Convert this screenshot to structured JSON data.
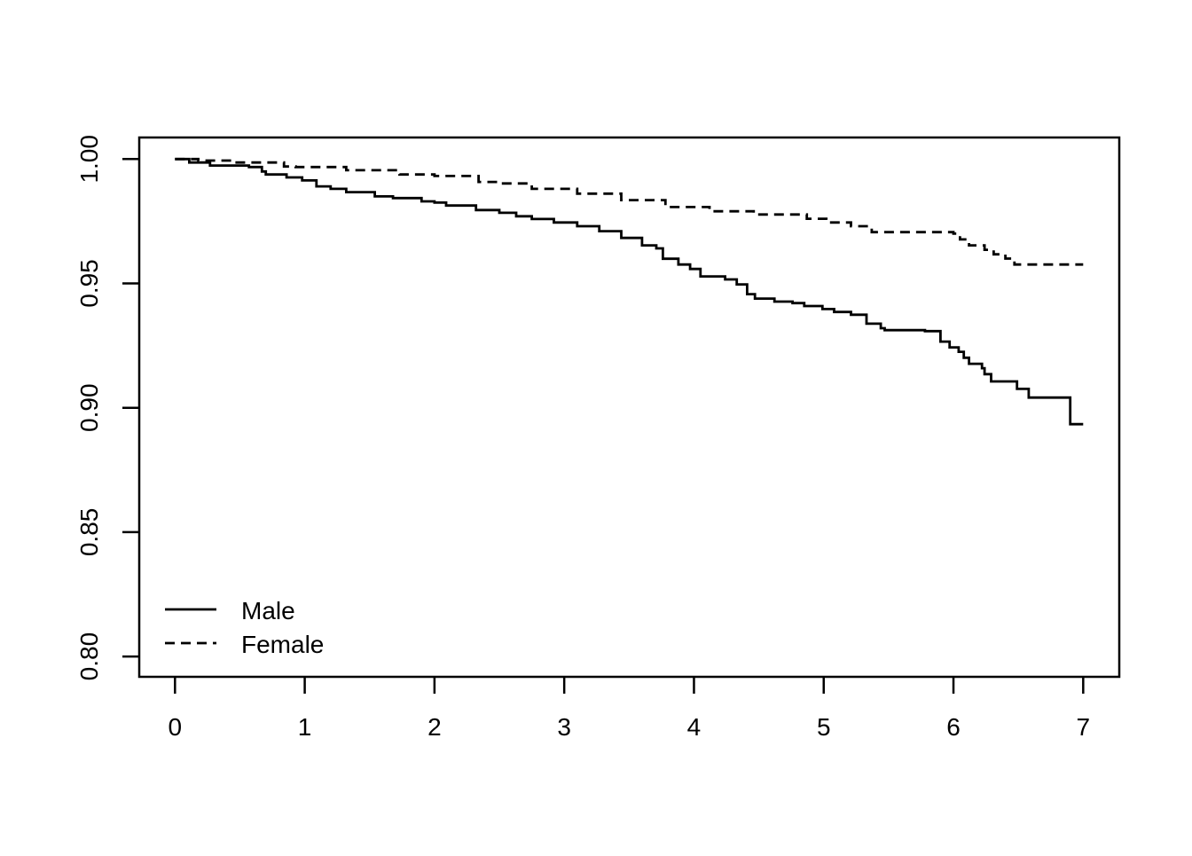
{
  "figure": {
    "background_color": "#FFFFFF",
    "foreground_color": "#000000"
  },
  "chart_data": {
    "type": "line",
    "subtype": "kaplan-meier-step-survival",
    "title": "",
    "xlabel": "",
    "ylabel": "",
    "xlim": [
      0,
      7
    ],
    "ylim": [
      0.8,
      1.0
    ],
    "grid": "off",
    "box": "full-border",
    "x_ticks": [
      {
        "value": 0,
        "label": "0"
      },
      {
        "value": 1,
        "label": "1"
      },
      {
        "value": 2,
        "label": "2"
      },
      {
        "value": 3,
        "label": "3"
      },
      {
        "value": 4,
        "label": "4"
      },
      {
        "value": 5,
        "label": "5"
      },
      {
        "value": 6,
        "label": "6"
      },
      {
        "value": 7,
        "label": "7"
      }
    ],
    "y_ticks": [
      {
        "value": 1.0,
        "label": "1.00"
      },
      {
        "value": 0.95,
        "label": "0.95"
      },
      {
        "value": 0.9,
        "label": "0.90"
      },
      {
        "value": 0.85,
        "label": "0.85"
      },
      {
        "value": 0.8,
        "label": "0.80"
      }
    ],
    "legend": {
      "position": "bottom-left-inside",
      "entries": [
        {
          "label": "Male",
          "line_style": "solid"
        },
        {
          "label": "Female",
          "line_style": "dashed"
        }
      ]
    },
    "series": [
      {
        "name": "Male",
        "line_style": "solid",
        "color": "#000000",
        "points": [
          [
            0.0,
            1.0
          ],
          [
            0.11,
            0.9986
          ],
          [
            0.27,
            0.9974
          ],
          [
            0.57,
            0.9968
          ],
          [
            0.67,
            0.995
          ],
          [
            0.7,
            0.9938
          ],
          [
            0.86,
            0.9926
          ],
          [
            0.98,
            0.9914
          ],
          [
            1.09,
            0.989
          ],
          [
            1.2,
            0.988
          ],
          [
            1.32,
            0.9867
          ],
          [
            1.54,
            0.985
          ],
          [
            1.68,
            0.9843
          ],
          [
            1.9,
            0.983
          ],
          [
            2.0,
            0.9825
          ],
          [
            2.09,
            0.9813
          ],
          [
            2.32,
            0.9795
          ],
          [
            2.5,
            0.9784
          ],
          [
            2.63,
            0.977
          ],
          [
            2.75,
            0.9759
          ],
          [
            2.92,
            0.9745
          ],
          [
            3.1,
            0.973
          ],
          [
            3.27,
            0.971
          ],
          [
            3.44,
            0.9683
          ],
          [
            3.6,
            0.9653
          ],
          [
            3.71,
            0.9641
          ],
          [
            3.76,
            0.9599
          ],
          [
            3.88,
            0.9576
          ],
          [
            3.97,
            0.9558
          ],
          [
            4.05,
            0.9528
          ],
          [
            4.24,
            0.9516
          ],
          [
            4.33,
            0.9496
          ],
          [
            4.41,
            0.9457
          ],
          [
            4.47,
            0.9439
          ],
          [
            4.62,
            0.9427
          ],
          [
            4.76,
            0.9421
          ],
          [
            4.85,
            0.9409
          ],
          [
            4.99,
            0.9397
          ],
          [
            5.08,
            0.9385
          ],
          [
            5.21,
            0.9374
          ],
          [
            5.33,
            0.9338
          ],
          [
            5.44,
            0.932
          ],
          [
            5.47,
            0.9312
          ],
          [
            5.78,
            0.9308
          ],
          [
            5.9,
            0.9266
          ],
          [
            5.97,
            0.9243
          ],
          [
            6.04,
            0.9225
          ],
          [
            6.08,
            0.9201
          ],
          [
            6.12,
            0.9177
          ],
          [
            6.22,
            0.9159
          ],
          [
            6.24,
            0.9135
          ],
          [
            6.29,
            0.9106
          ],
          [
            6.49,
            0.9076
          ],
          [
            6.58,
            0.9041
          ],
          [
            6.9,
            0.8934
          ],
          [
            7.0,
            0.8934
          ]
        ]
      },
      {
        "name": "Female",
        "line_style": "dashed",
        "color": "#000000",
        "points": [
          [
            0.0,
            1.0
          ],
          [
            0.18,
            0.9994
          ],
          [
            0.45,
            0.9986
          ],
          [
            0.84,
            0.997
          ],
          [
            0.93,
            0.9968
          ],
          [
            1.32,
            0.9955
          ],
          [
            1.73,
            0.9938
          ],
          [
            2.0,
            0.9932
          ],
          [
            2.34,
            0.9908
          ],
          [
            2.5,
            0.9902
          ],
          [
            2.75,
            0.988
          ],
          [
            3.1,
            0.9861
          ],
          [
            3.44,
            0.9835
          ],
          [
            3.78,
            0.9807
          ],
          [
            4.12,
            0.979
          ],
          [
            4.46,
            0.9777
          ],
          [
            4.87,
            0.976
          ],
          [
            5.02,
            0.9745
          ],
          [
            5.21,
            0.973
          ],
          [
            5.37,
            0.9706
          ],
          [
            6.0,
            0.97
          ],
          [
            6.05,
            0.9677
          ],
          [
            6.12,
            0.9653
          ],
          [
            6.24,
            0.9635
          ],
          [
            6.31,
            0.9617
          ],
          [
            6.4,
            0.96
          ],
          [
            6.47,
            0.9576
          ],
          [
            7.0,
            0.9576
          ]
        ]
      }
    ]
  }
}
